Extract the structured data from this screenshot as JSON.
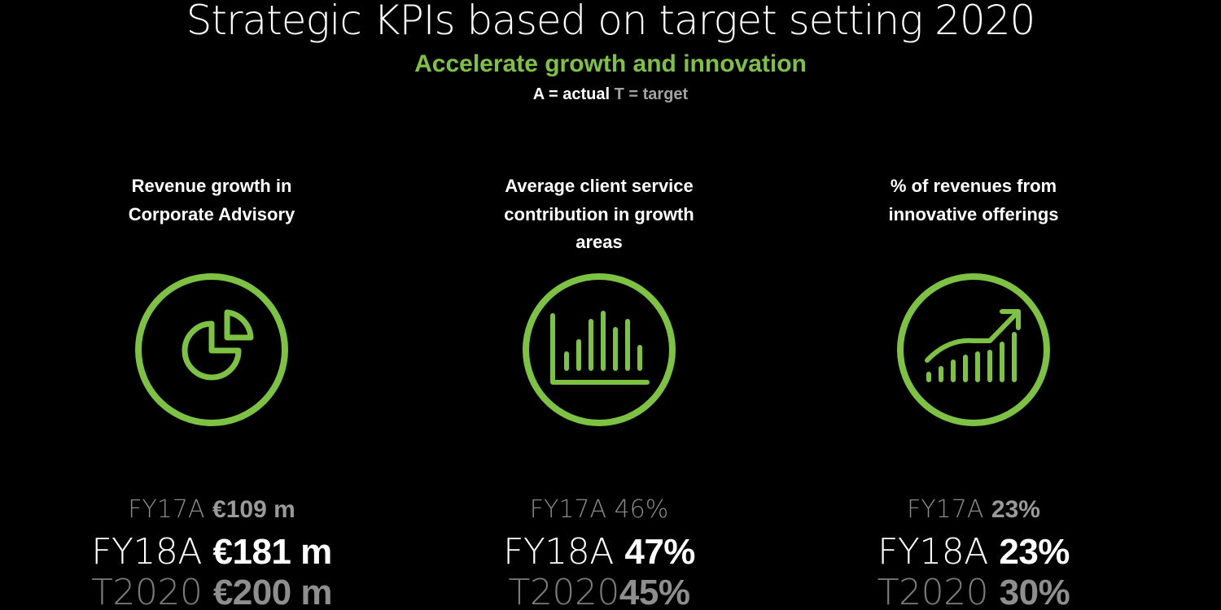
{
  "title": "Strategic KPIs based on target setting 2020",
  "subtitle": "Accelerate growth and innovation",
  "legend": {
    "actual": "A = actual",
    "target": "T = target"
  },
  "colors": {
    "accent_green": "#7dc242",
    "background": "#000000",
    "text_white": "#ffffff",
    "text_grey": "#8a8a8a"
  },
  "kpis": [
    {
      "heading": "Revenue growth in Corporate Advisory",
      "icon": "pie-chart-icon",
      "fy17_label": "FY17A",
      "fy17_value": "€109 m",
      "fy18_label": "FY18A",
      "fy18_value": "€181 m",
      "t2020_label": "T2020",
      "t2020_value": "€200 m"
    },
    {
      "heading": "Average client service contribution in growth areas",
      "icon": "bar-chart-icon",
      "fy17_label": "FY17A",
      "fy17_value": "46%",
      "fy18_label": "FY18A",
      "fy18_value": "47%",
      "t2020_label": "T2020",
      "t2020_value": "45%"
    },
    {
      "heading": "% of revenues from innovative offerings",
      "icon": "growth-chart-icon",
      "fy17_label": "FY17A",
      "fy17_value": "23%",
      "fy18_label": "FY18A",
      "fy18_value": "23%",
      "t2020_label": "T2020",
      "t2020_value": "30%"
    }
  ]
}
